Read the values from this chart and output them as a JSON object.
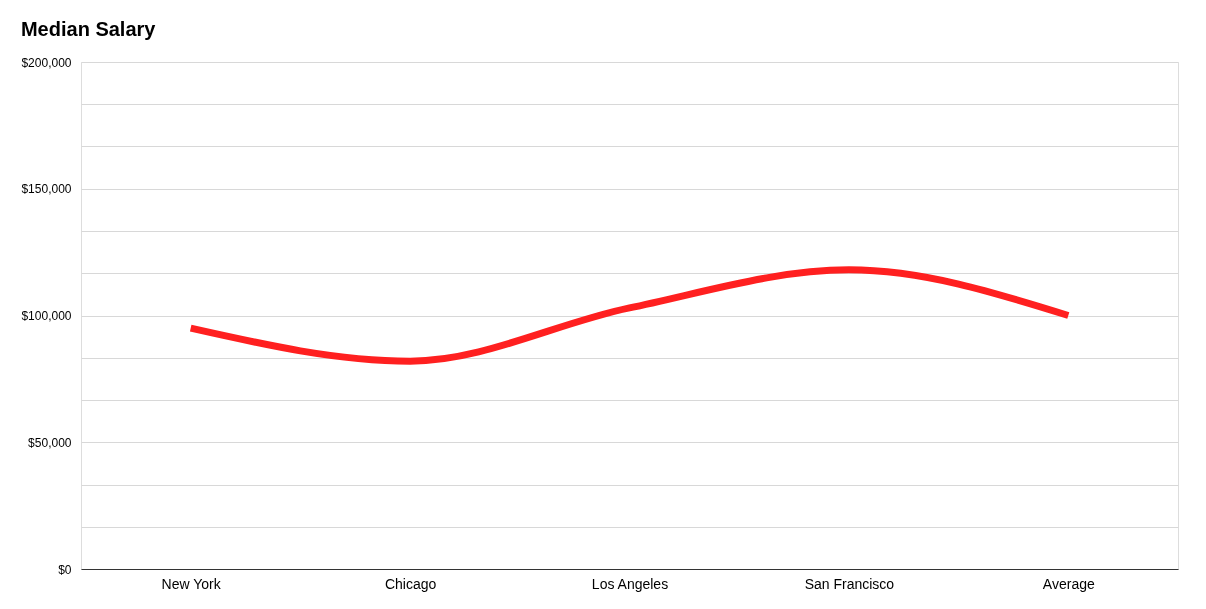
{
  "chart_data": {
    "type": "line",
    "title": "Median Salary",
    "categories": [
      "New York",
      "Chicago",
      "Los Angeles",
      "San Francisco",
      "Average"
    ],
    "series": [
      {
        "color": "#ff2020",
        "values": [
          95000,
          82000,
          103000,
          118000,
          100000
        ]
      }
    ],
    "ylim": [
      0,
      200000
    ],
    "yticks": [
      {
        "value": 0,
        "label": "$0"
      },
      {
        "value": 16667,
        "label": null
      },
      {
        "value": 33333,
        "label": null
      },
      {
        "value": 50000,
        "label": "$50,000"
      },
      {
        "value": 66667,
        "label": null
      },
      {
        "value": 83333,
        "label": null
      },
      {
        "value": 100000,
        "label": "$100,000"
      },
      {
        "value": 116667,
        "label": null
      },
      {
        "value": 133333,
        "label": null
      },
      {
        "value": 150000,
        "label": "$150,000"
      },
      {
        "value": 166667,
        "label": null
      },
      {
        "value": 183333,
        "label": null
      },
      {
        "value": 200000,
        "label": "$200,000"
      }
    ],
    "grid": "y",
    "marker": "none",
    "line_style": "solid",
    "legend": false
  }
}
